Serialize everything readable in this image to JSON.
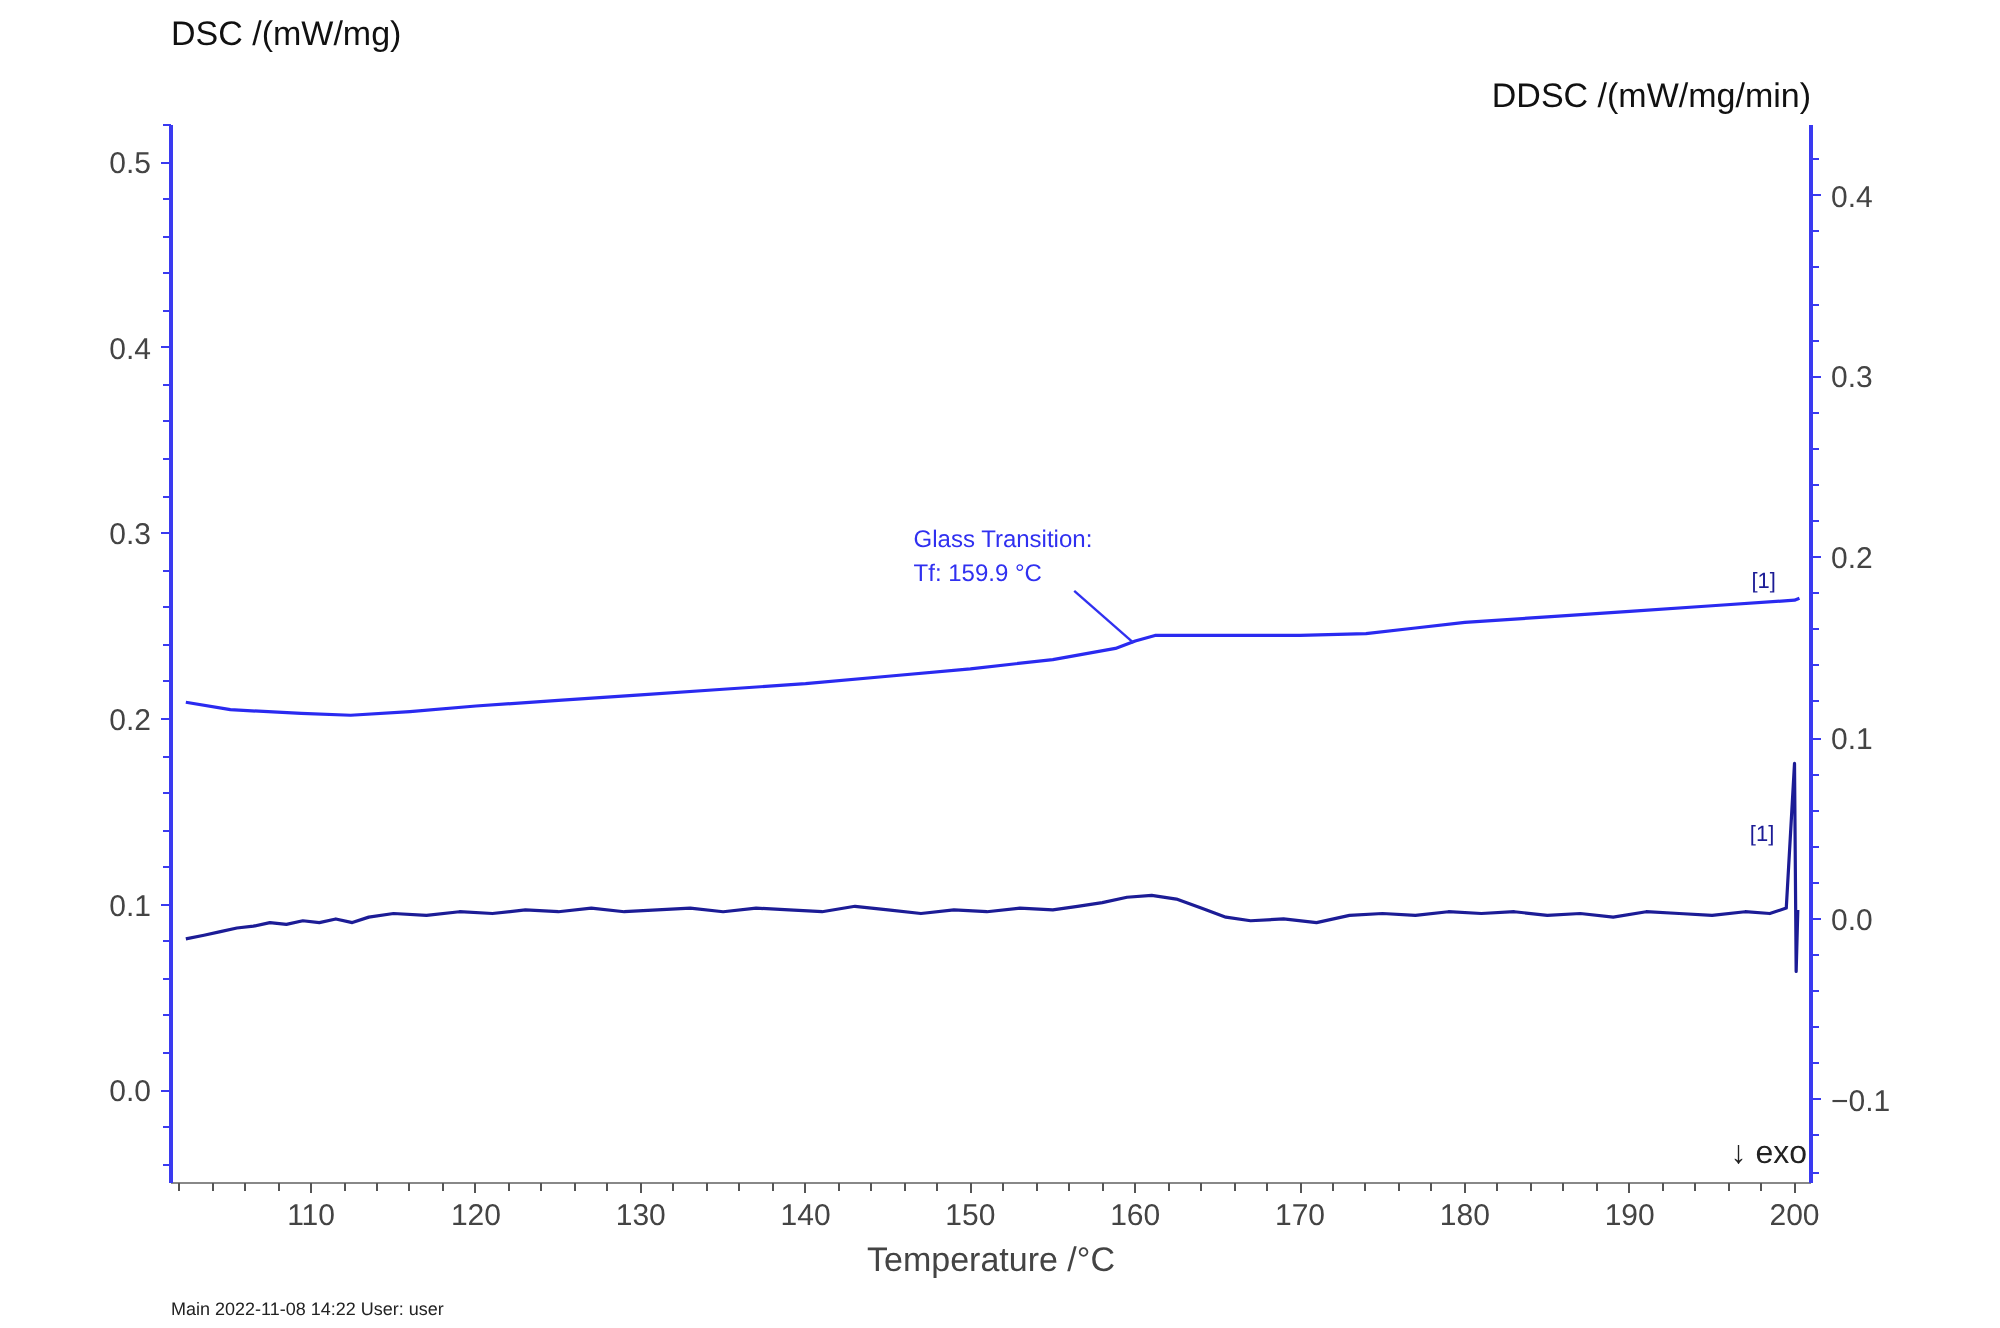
{
  "chart_data": {
    "type": "line",
    "xlabel": "Temperature /°C",
    "ylabel": "DSC /(mW/mg)",
    "y2label": "DDSC /(mW/mg/min)",
    "xlim": [
      101.5,
      201
    ],
    "xticks": [
      110,
      120,
      130,
      140,
      150,
      160,
      170,
      180,
      190,
      200
    ],
    "ylim": [
      -0.05,
      0.52
    ],
    "yticks": [
      {
        "value": 0,
        "label": "0.0"
      },
      0.1,
      0.2,
      0.3,
      0.4,
      0.5
    ],
    "y2lim": [
      -0.146,
      0.439
    ],
    "y2ticks": [
      -0.1,
      {
        "value": 0,
        "label": "0.0"
      },
      0.1,
      0.2,
      0.3,
      0.4
    ],
    "grid": false,
    "marker": "none",
    "line_style": "solid",
    "series": [
      {
        "color": "#2a2af0",
        "x": [
          102.4,
          105.1,
          109.4,
          112.4,
          116,
          120,
          125,
          130,
          135,
          140,
          145,
          150,
          155,
          158.8,
          160,
          161.2,
          162.4,
          166,
          170,
          174,
          177,
          180,
          185,
          190,
          195,
          200,
          200.3
        ],
        "values": [
          0.209,
          0.205,
          0.203,
          0.202,
          0.204,
          0.207,
          0.21,
          0.213,
          0.216,
          0.219,
          0.223,
          0.227,
          0.232,
          0.238,
          0.242,
          0.245,
          0.245,
          0.245,
          0.245,
          0.246,
          0.249,
          0.252,
          0.255,
          0.258,
          0.261,
          0.264,
          0.265
        ]
      },
      {
        "color": "#1c1c96",
        "axis": "y2",
        "x": [
          102.4,
          103.5,
          104.5,
          105.5,
          106.5,
          107.5,
          108.5,
          109.5,
          110.5,
          111.5,
          112.5,
          113.5,
          115,
          117,
          119,
          121,
          123,
          125,
          127,
          129,
          131,
          133,
          135,
          137,
          139,
          141,
          143,
          145,
          147,
          149,
          151,
          153,
          155,
          156.5,
          158,
          159.5,
          161,
          162.5,
          164,
          165.5,
          167,
          169,
          171,
          173,
          175,
          177,
          179,
          181,
          183,
          185,
          187,
          189,
          191,
          193,
          195,
          197,
          198.5,
          199.5,
          200,
          200.1,
          200.2
        ],
        "values": [
          -0.011,
          -0.009,
          -0.007,
          -0.005,
          -0.004,
          -0.002,
          -0.003,
          -0.001,
          -0.002,
          0.0,
          -0.002,
          0.001,
          0.003,
          0.002,
          0.004,
          0.003,
          0.005,
          0.004,
          0.006,
          0.004,
          0.005,
          0.006,
          0.004,
          0.006,
          0.005,
          0.004,
          0.007,
          0.005,
          0.003,
          0.005,
          0.004,
          0.006,
          0.005,
          0.007,
          0.009,
          0.012,
          0.013,
          0.011,
          0.006,
          0.001,
          -0.001,
          0.0,
          -0.002,
          0.002,
          0.003,
          0.002,
          0.004,
          0.003,
          0.004,
          0.002,
          0.003,
          0.001,
          0.004,
          0.003,
          0.002,
          0.004,
          0.003,
          0.006,
          0.086,
          -0.029,
          0.005
        ]
      }
    ],
    "annotations": [
      "↓ exo",
      {
        "text": "Glass Transition:\nTf:  159.9 °C",
        "x": 159.9,
        "y": 0.241
      },
      {
        "text": "[1]",
        "x": 200.3,
        "y": 0.265
      },
      {
        "text": "[1]",
        "x": 200.2,
        "y": 0.129
      },
      "Main   2022-11-08 14:22   User: user"
    ]
  }
}
